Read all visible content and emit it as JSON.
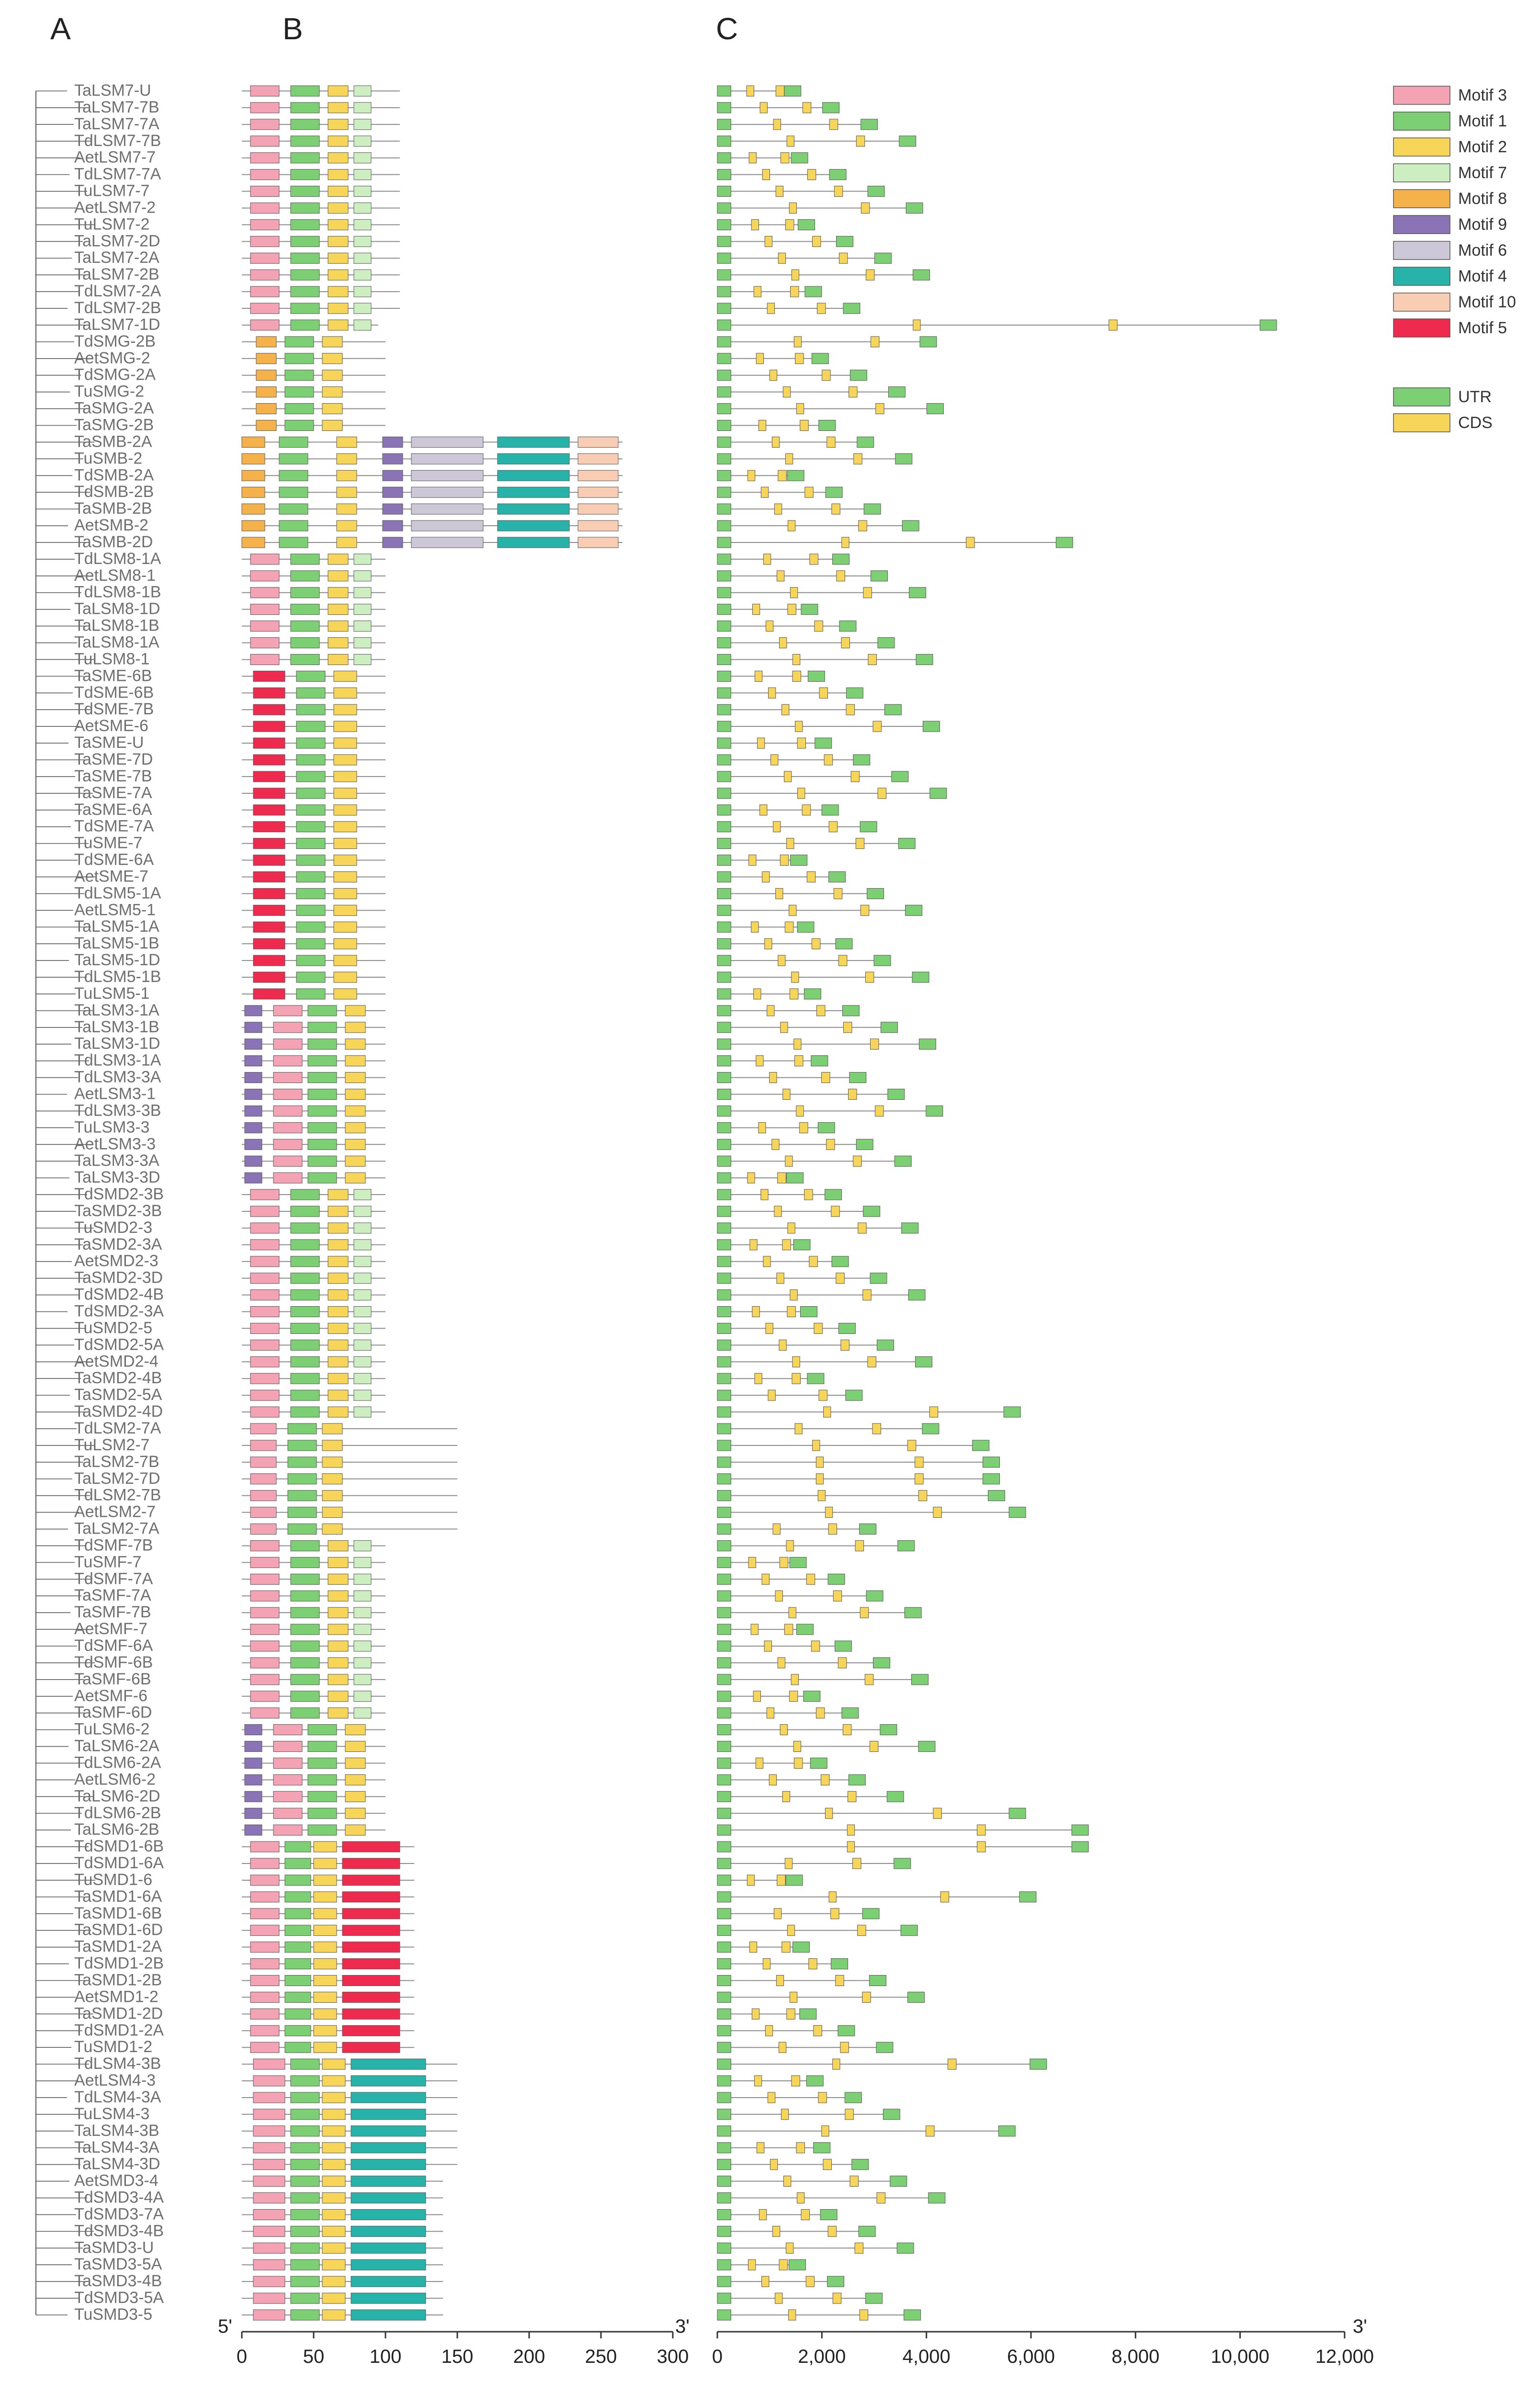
{
  "panels": [
    "A",
    "B",
    "C"
  ],
  "genes": [
    "TaLSM7-U",
    "TaLSM7-7B",
    "TaLSM7-7A",
    "TdLSM7-7B",
    "AetLSM7-7",
    "TdLSM7-7A",
    "TuLSM7-7",
    "AetLSM7-2",
    "TuLSM7-2",
    "TaLSM7-2D",
    "TaLSM7-2A",
    "TaLSM7-2B",
    "TdLSM7-2A",
    "TdLSM7-2B",
    "TaLSM7-1D",
    "TdSMG-2B",
    "AetSMG-2",
    "TdSMG-2A",
    "TuSMG-2",
    "TaSMG-2A",
    "TaSMG-2B",
    "TaSMB-2A",
    "TuSMB-2",
    "TdSMB-2A",
    "TdSMB-2B",
    "TaSMB-2B",
    "AetSMB-2",
    "TaSMB-2D",
    "TdLSM8-1A",
    "AetLSM8-1",
    "TdLSM8-1B",
    "TaLSM8-1D",
    "TaLSM8-1B",
    "TaLSM8-1A",
    "TuLSM8-1",
    "TaSME-6B",
    "TdSME-6B",
    "TdSME-7B",
    "AetSME-6",
    "TaSME-U",
    "TaSME-7D",
    "TaSME-7B",
    "TaSME-7A",
    "TaSME-6A",
    "TdSME-7A",
    "TuSME-7",
    "TdSME-6A",
    "AetSME-7",
    "TdLSM5-1A",
    "AetLSM5-1",
    "TaLSM5-1A",
    "TaLSM5-1B",
    "TaLSM5-1D",
    "TdLSM5-1B",
    "TuLSM5-1",
    "TaLSM3-1A",
    "TaLSM3-1B",
    "TaLSM3-1D",
    "TdLSM3-1A",
    "TdLSM3-3A",
    "AetLSM3-1",
    "TdLSM3-3B",
    "TuLSM3-3",
    "AetLSM3-3",
    "TaLSM3-3A",
    "TaLSM3-3D",
    "TdSMD2-3B",
    "TaSMD2-3B",
    "TuSMD2-3",
    "TaSMD2-3A",
    "AetSMD2-3",
    "TaSMD2-3D",
    "TdSMD2-4B",
    "TdSMD2-3A",
    "TuSMD2-5",
    "TdSMD2-5A",
    "AetSMD2-4",
    "TaSMD2-4B",
    "TaSMD2-5A",
    "TaSMD2-4D",
    "TdLSM2-7A",
    "TuLSM2-7",
    "TaLSM2-7B",
    "TaLSM2-7D",
    "TdLSM2-7B",
    "AetLSM2-7",
    "TaLSM2-7A",
    "TdSMF-7B",
    "TuSMF-7",
    "TdSMF-7A",
    "TaSMF-7A",
    "TaSMF-7B",
    "AetSMF-7",
    "TdSMF-6A",
    "TdSMF-6B",
    "TaSMF-6B",
    "AetSMF-6",
    "TaSMF-6D",
    "TuLSM6-2",
    "TaLSM6-2A",
    "TdLSM6-2A",
    "AetLSM6-2",
    "TaLSM6-2D",
    "TdLSM6-2B",
    "TaLSM6-2B",
    "TdSMD1-6B",
    "TdSMD1-6A",
    "TuSMD1-6",
    "TaSMD1-6A",
    "TaSMD1-6B",
    "TaSMD1-6D",
    "TaSMD1-2A",
    "TdSMD1-2B",
    "TaSMD1-2B",
    "AetSMD1-2",
    "TaSMD1-2D",
    "TdSMD1-2A",
    "TuSMD1-2",
    "TdLSM4-3B",
    "AetLSM4-3",
    "TdLSM4-3A",
    "TuLSM4-3",
    "TaLSM4-3B",
    "TaLSM4-3A",
    "TaLSM4-3D",
    "AetSMD3-4",
    "TdSMD3-4A",
    "TdSMD3-7A",
    "TdSMD3-4B",
    "TaSMD3-U",
    "TaSMD3-5A",
    "TaSMD3-4B",
    "TdSMD3-5A",
    "TuSMD3-5"
  ],
  "motif_legend": [
    {
      "label": "Motif 3",
      "color": "#f4a3b5"
    },
    {
      "label": "Motif 1",
      "color": "#7ccf72"
    },
    {
      "label": "Motif 2",
      "color": "#f7d558"
    },
    {
      "label": "Motif 7",
      "color": "#cdeec0"
    },
    {
      "label": "Motif 8",
      "color": "#f6b24a"
    },
    {
      "label": "Motif 9",
      "color": "#8a74b5"
    },
    {
      "label": "Motif 6",
      "color": "#cdc8d8"
    },
    {
      "label": "Motif 4",
      "color": "#27b3aa"
    },
    {
      "label": "Motif 10",
      "color": "#f9cdb4"
    },
    {
      "label": "Motif 5",
      "color": "#ee2a4f"
    }
  ],
  "structure_legend": [
    {
      "label": "UTR",
      "color": "#7ccf72"
    },
    {
      "label": "CDS",
      "color": "#f7d558"
    }
  ],
  "motif_axis": {
    "ticks": [
      "0",
      "50",
      "100",
      "150",
      "200",
      "250",
      "300"
    ],
    "max": 300,
    "left_end": "5'",
    "right_end": "3'"
  },
  "gene_axis": {
    "ticks": [
      "0",
      "2,000",
      "4,000",
      "6,000",
      "8,000",
      "10,000",
      "12,000"
    ],
    "max": 12000,
    "right_end": "3'"
  },
  "colors": {
    "line": "#8c8c8c",
    "label": "#6f6f6f",
    "tree": "#5a5a5a",
    "box_stroke": "#555555"
  }
}
